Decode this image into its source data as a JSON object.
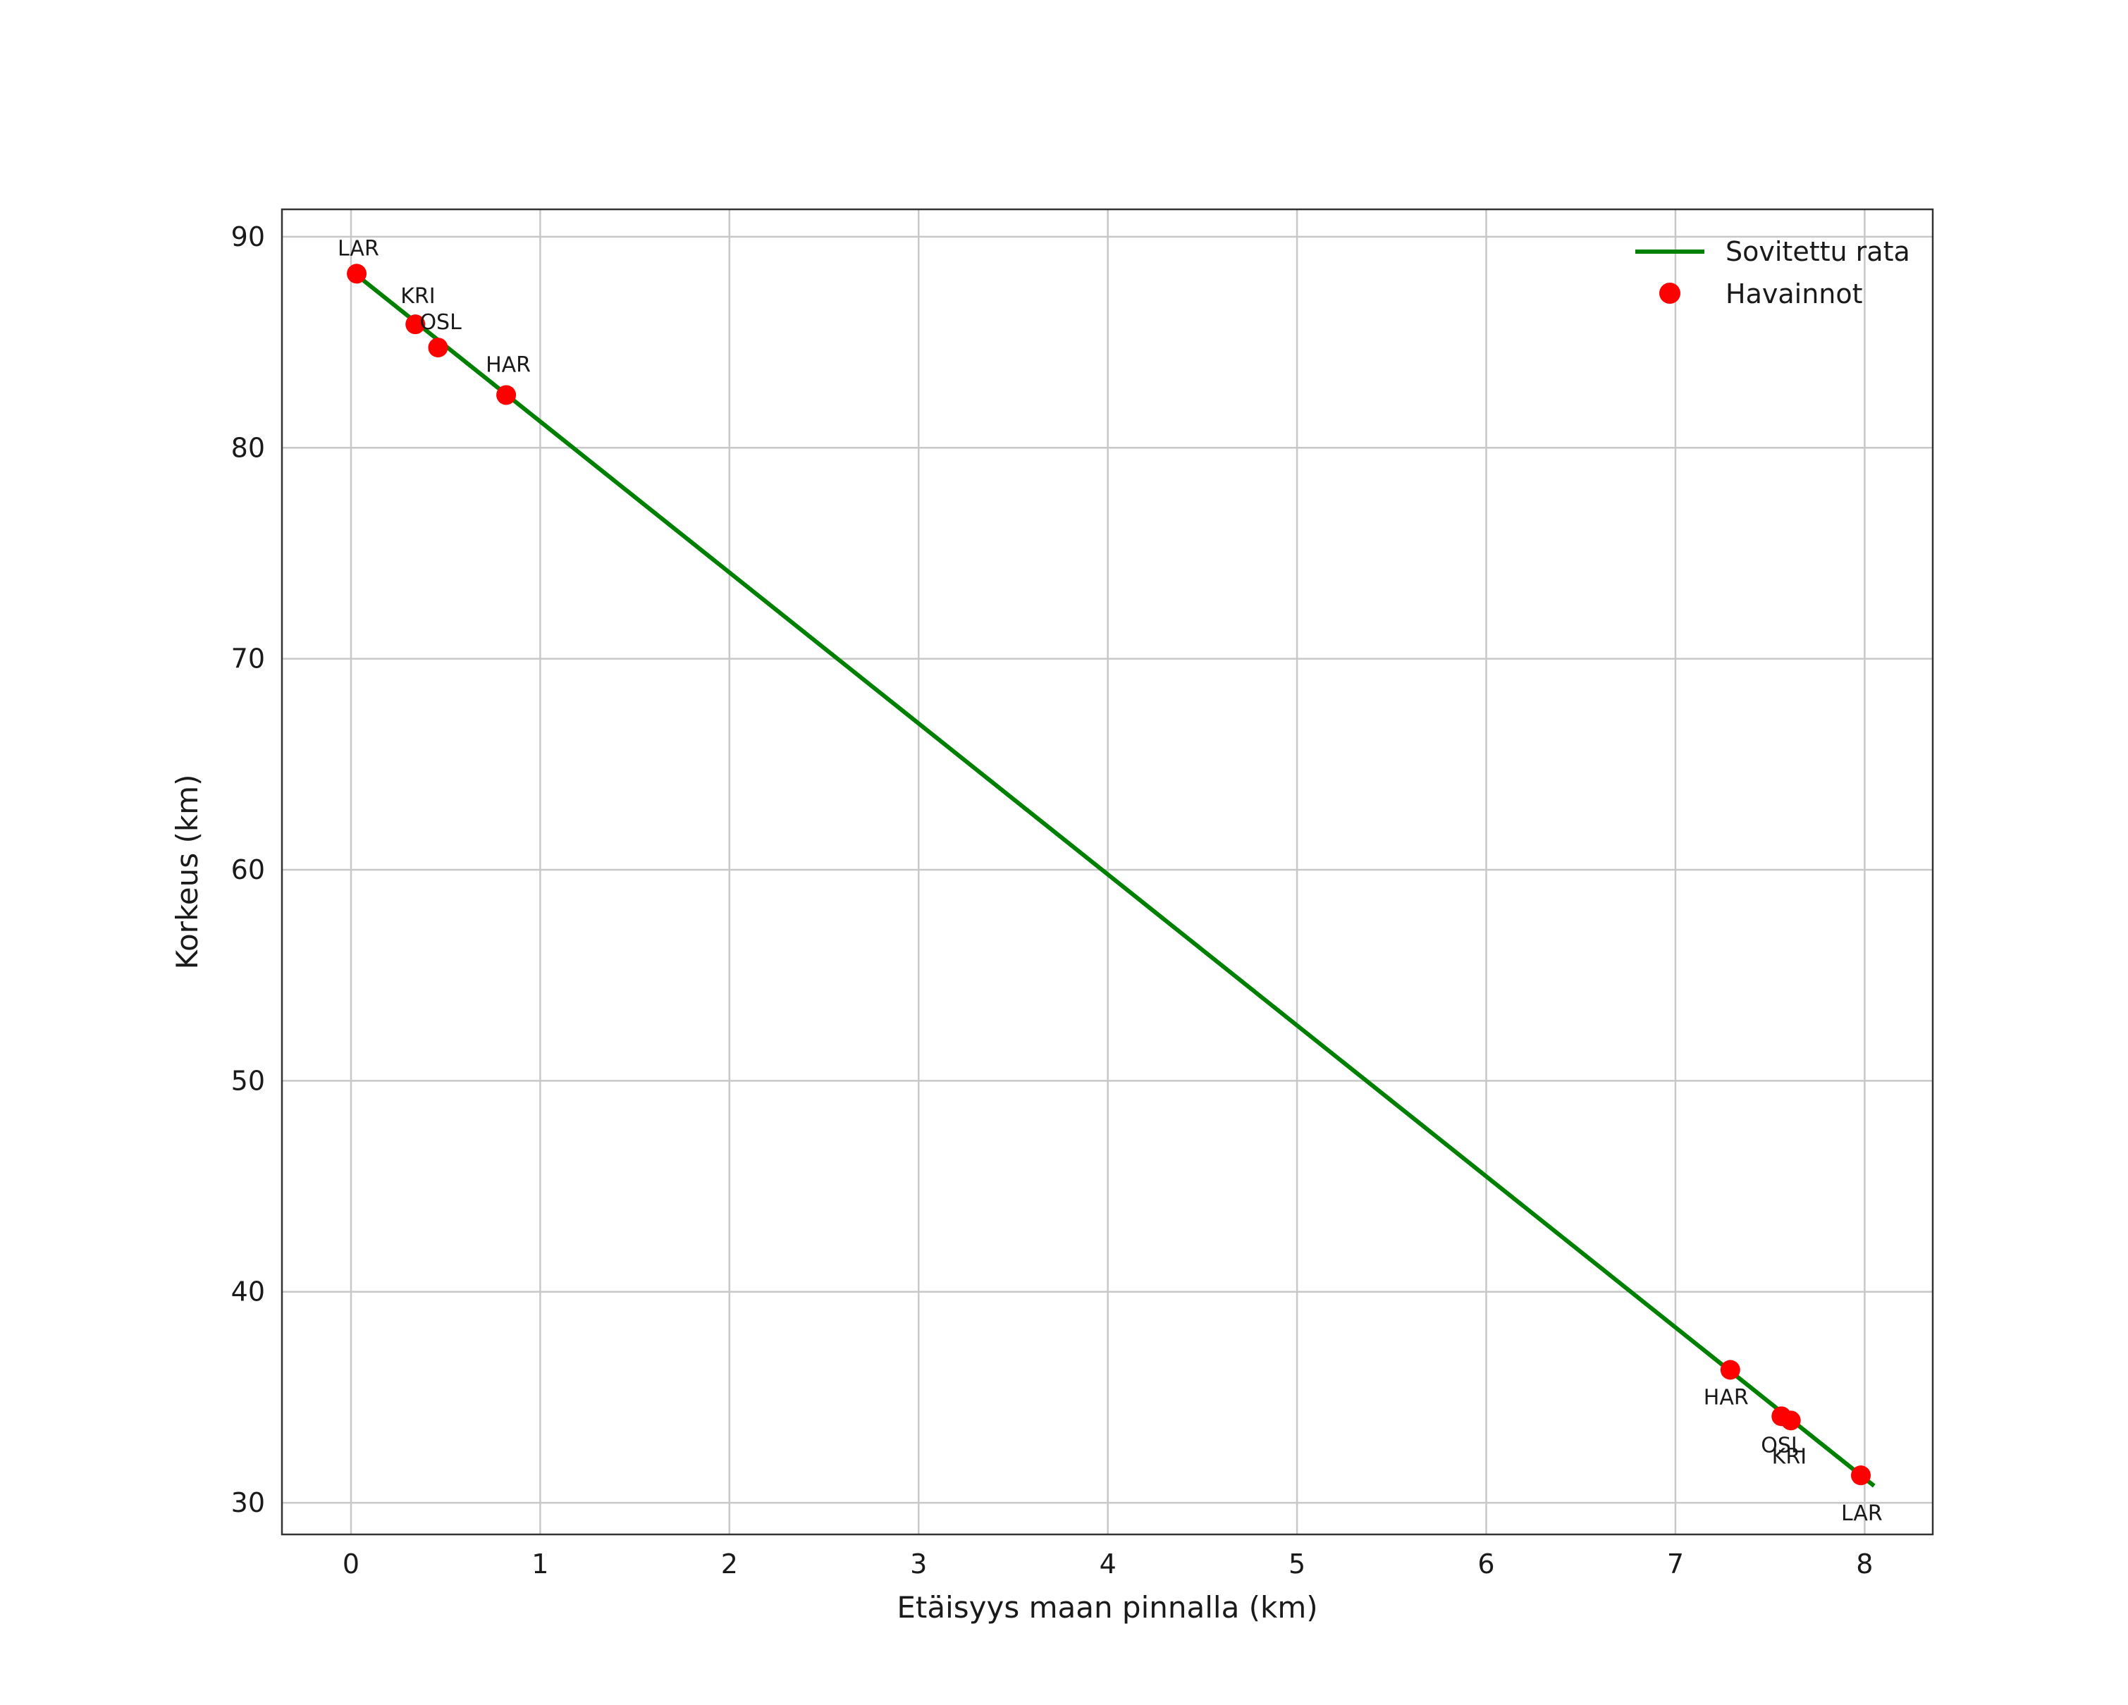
{
  "chart_data": {
    "type": "scatter",
    "title": "",
    "xlabel": "Etäisyys maan pinnalla (km)",
    "ylabel": "Korkeus (km)",
    "xlim": [
      -0.365,
      8.36
    ],
    "ylim": [
      28.5,
      91.3
    ],
    "xticks": [
      0,
      1,
      2,
      3,
      4,
      5,
      6,
      7,
      8
    ],
    "yticks": [
      30,
      40,
      50,
      60,
      70,
      80,
      90
    ],
    "grid": true,
    "colors": {
      "line": "#008000",
      "points": "#ff0000",
      "grid": "#c8c8c8",
      "frame": "#333333",
      "text": "#1a1a1a",
      "background": "#ffffff"
    },
    "legend": {
      "position": "upper-right",
      "entries": [
        {
          "label": "Sovitettu rata",
          "marker": "line",
          "color": "#008000"
        },
        {
          "label": "Havainnot",
          "marker": "point",
          "color": "#ff0000"
        }
      ]
    },
    "line_series": {
      "name": "Sovitettu rata",
      "color": "#008000",
      "points": [
        [
          0.0,
          88.4
        ],
        [
          8.05,
          30.8
        ]
      ]
    },
    "scatter_series": {
      "name": "Havainnot",
      "color": "#ff0000",
      "marker_radius_px": 14,
      "points": [
        {
          "label": "LAR",
          "x": 0.03,
          "y": 88.25,
          "label_offset": [
            -27,
            -26
          ]
        },
        {
          "label": "KRI",
          "x": 0.34,
          "y": 85.85,
          "label_offset": [
            -21,
            -30
          ]
        },
        {
          "label": "OSL",
          "x": 0.46,
          "y": 84.75,
          "label_offset": [
            -26,
            -26
          ]
        },
        {
          "label": "HAR",
          "x": 0.82,
          "y": 82.5,
          "label_offset": [
            -29,
            -33
          ]
        },
        {
          "label": "HAR",
          "x": 7.29,
          "y": 36.3,
          "label_offset": [
            -38,
            49
          ]
        },
        {
          "label": "OSL",
          "x": 7.56,
          "y": 34.1,
          "label_offset": [
            -29,
            51
          ]
        },
        {
          "label": "KRI",
          "x": 7.61,
          "y": 33.9,
          "label_offset": [
            -27,
            61
          ]
        },
        {
          "label": "LAR",
          "x": 7.98,
          "y": 31.3,
          "label_offset": [
            -28,
            64
          ]
        }
      ]
    }
  }
}
